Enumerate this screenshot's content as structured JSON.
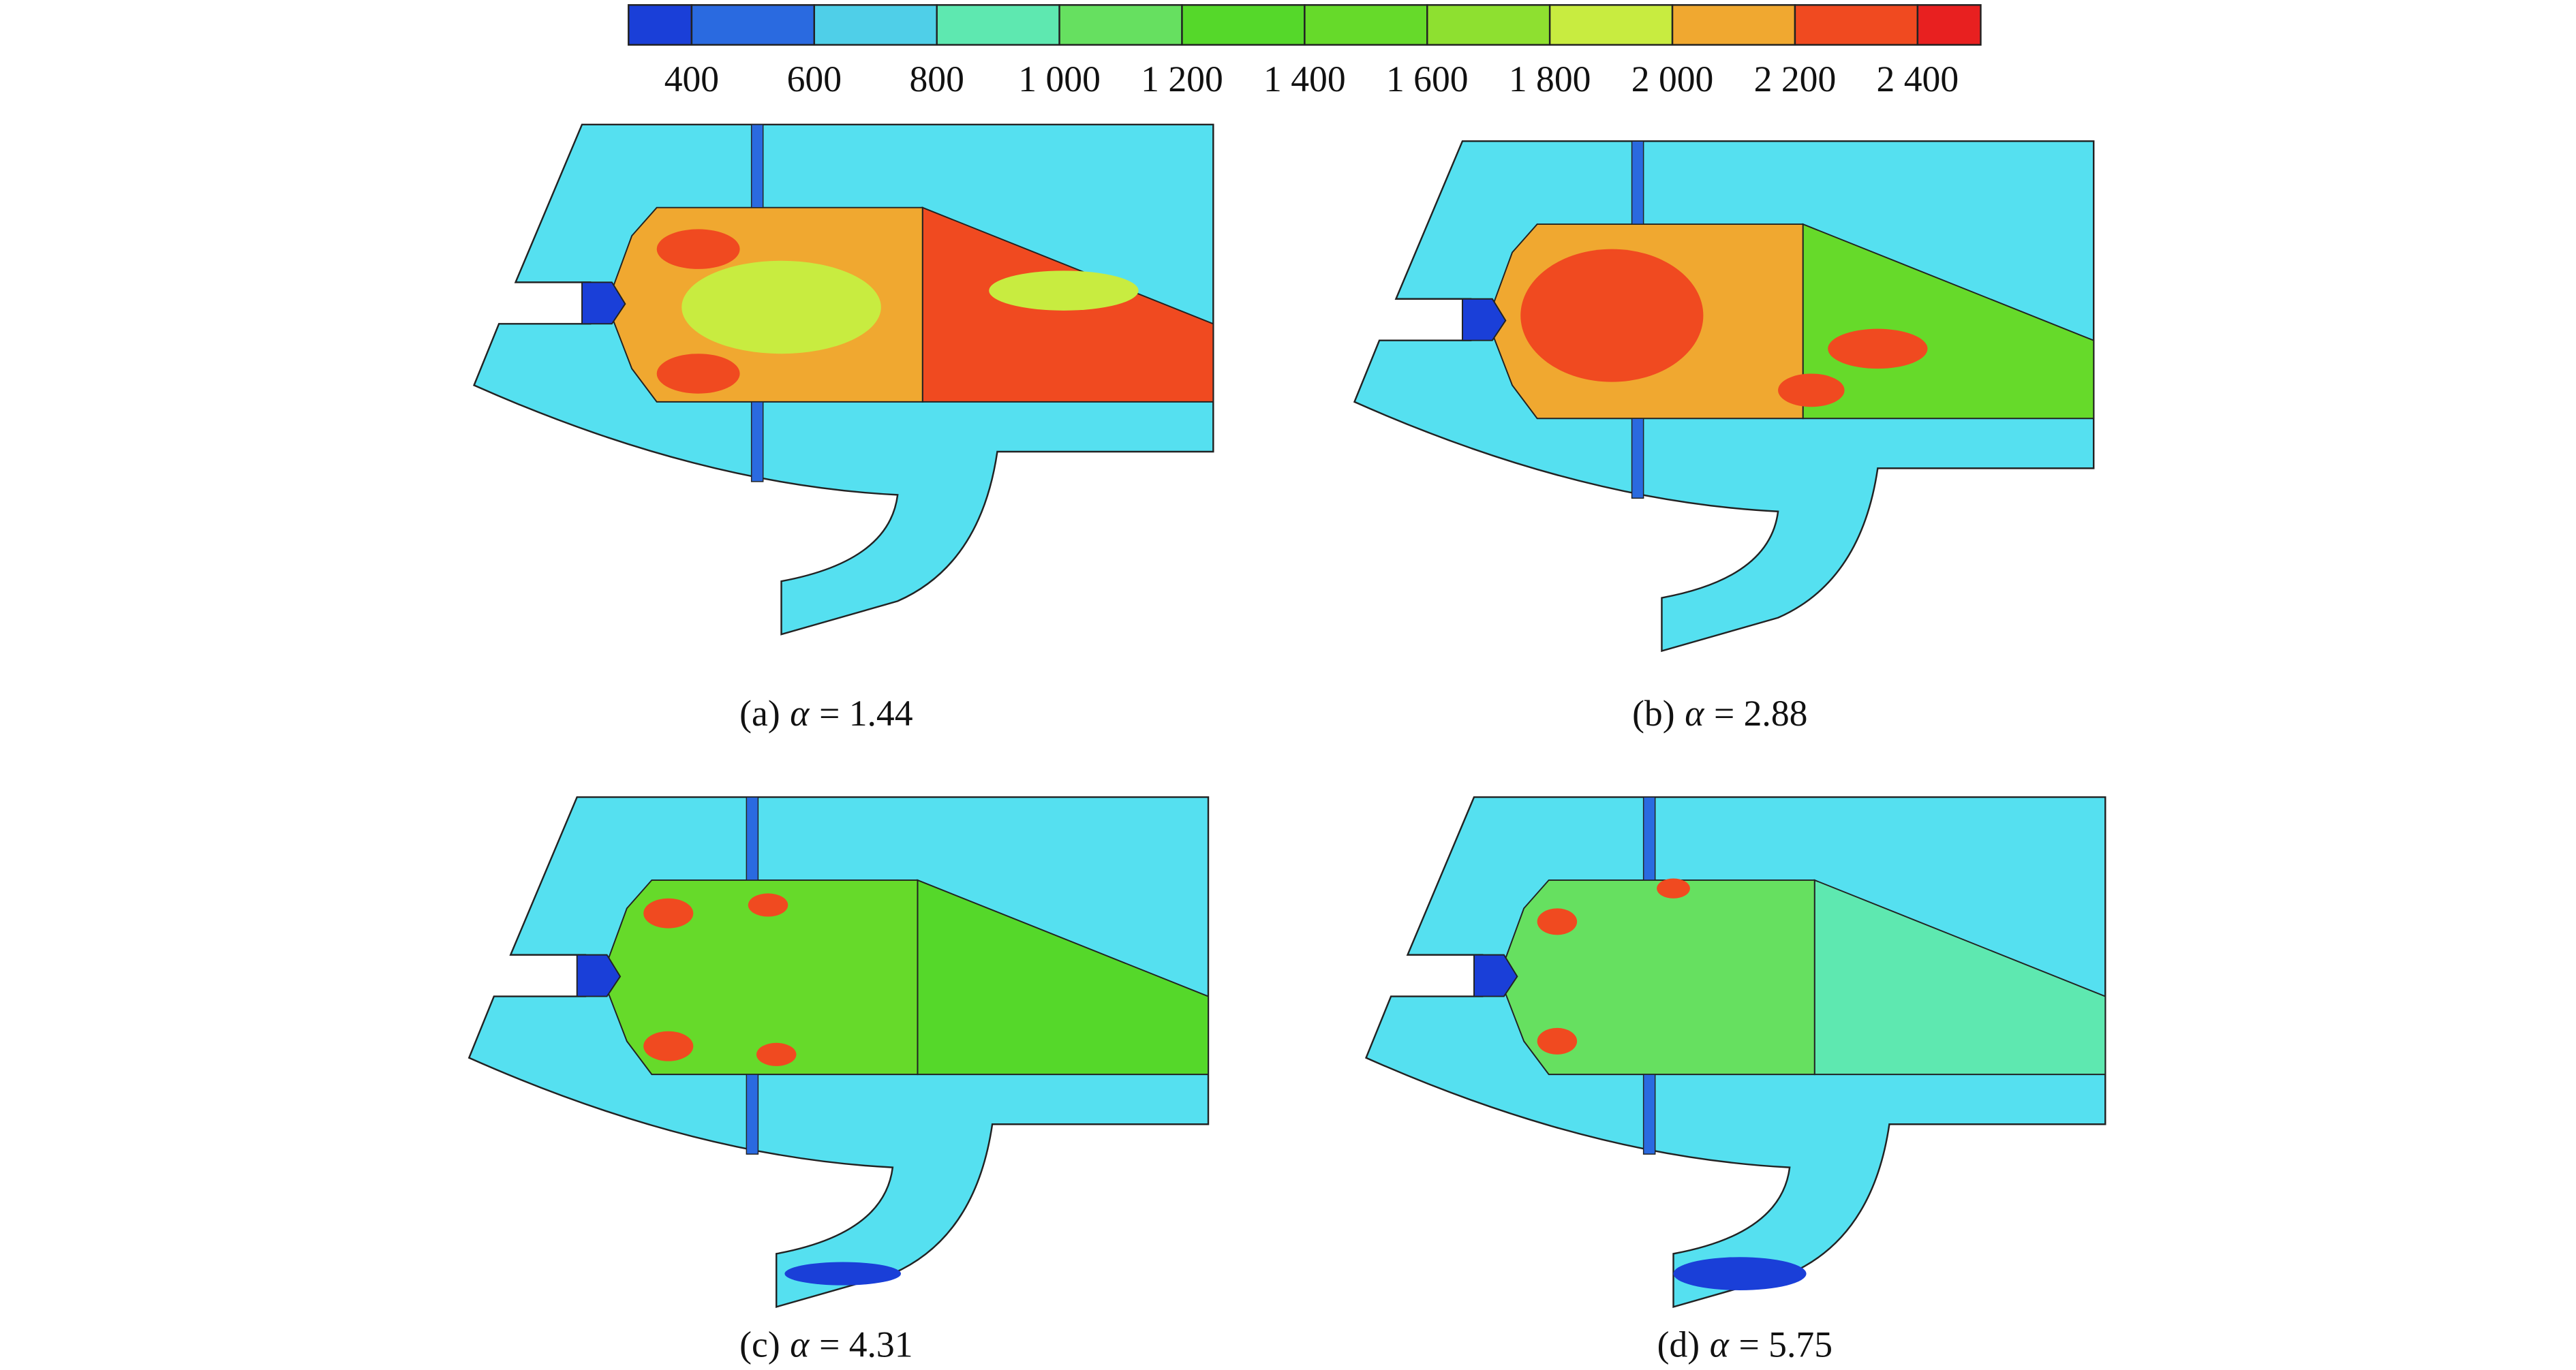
{
  "colorbar": {
    "labels": [
      "400",
      "600",
      "800",
      "1 000",
      "1 200",
      "1 400",
      "1 600",
      "1 800",
      "2 000",
      "2 200",
      "2 400"
    ],
    "colors": [
      "#1a3fd8",
      "#2a6ae0",
      "#4fcfe8",
      "#5ee8b0",
      "#66e060",
      "#55d82a",
      "#66da2a",
      "#8ee030",
      "#c8ec40",
      "#f0a830",
      "#f04a20",
      "#e82020"
    ]
  },
  "panels": [
    {
      "label": "(a)",
      "symbol": "α",
      "value": "= 1.44"
    },
    {
      "label": "(b)",
      "symbol": "α",
      "value": "= 2.88"
    },
    {
      "label": "(c)",
      "symbol": "α",
      "value": "= 4.31"
    },
    {
      "label": "(d)",
      "symbol": "α",
      "value": "= 5.75"
    }
  ]
}
